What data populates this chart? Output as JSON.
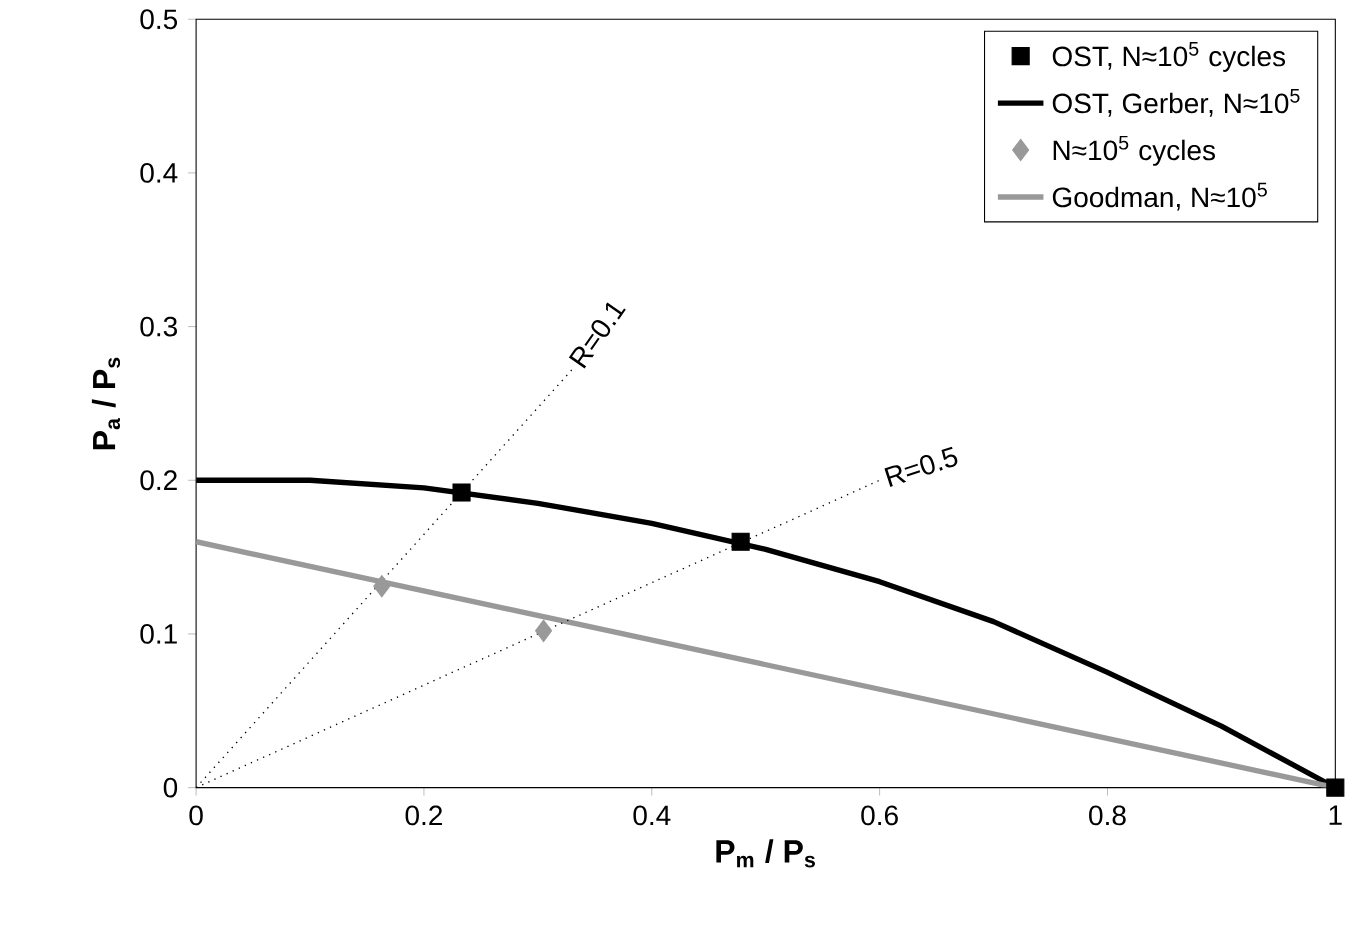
{
  "chart_data": {
    "type": "scatter",
    "xlabel": "**P$_{m}$ / P$_{s}$**",
    "ylabel": "**P$_{a}$ / P$_{s}$**",
    "xlim": [
      0,
      1
    ],
    "ylim": [
      0,
      0.5
    ],
    "xticks": [
      0,
      0.2,
      0.4,
      0.6,
      0.8,
      1
    ],
    "yticks": [
      0,
      0.1,
      0.2,
      0.3,
      0.4,
      0.5
    ],
    "grid": false,
    "legend": "top right",
    "series": [
      {
        "name": "OST, N≈10$^{5}$ cycles",
        "marker": "square",
        "color": "#000000",
        "x": [
          0.233,
          0.478,
          1
        ],
        "values": [
          0.192,
          0.16,
          0
        ]
      },
      {
        "name": "OST, Gerber, N≈10$^{5}$",
        "type": "line",
        "marker": "none",
        "line_style": "solid",
        "color": "#000000",
        "x": [
          0,
          0.1,
          0.2,
          0.3,
          0.4,
          0.5,
          0.6,
          0.7,
          0.8,
          0.9,
          0.95,
          1
        ],
        "values": [
          0.2,
          0.2,
          0.195,
          0.185,
          0.172,
          0.155,
          0.134,
          0.108,
          0.075,
          0.04,
          0.02,
          0
        ]
      },
      {
        "name": "N≈10$^{5}$ cycles",
        "marker": "diamond",
        "color": "#999999",
        "x": [
          0.163,
          0.305
        ],
        "values": [
          0.131,
          0.102
        ]
      },
      {
        "name": "Goodman, N≈10$^{5}$",
        "type": "line",
        "marker": "none",
        "line_style": "solid",
        "color": "#999999",
        "x": [
          0,
          1
        ],
        "values": [
          0.16,
          0
        ]
      },
      {
        "type": "line",
        "marker": "none",
        "line_style": "dotted",
        "color": "#000000",
        "x": [
          0,
          0.33
        ],
        "values": [
          0,
          0.272
        ]
      },
      {
        "type": "line",
        "marker": "none",
        "line_style": "dotted",
        "color": "#000000",
        "x": [
          0,
          0.6
        ],
        "values": [
          0,
          0.2
        ]
      }
    ],
    "annotations": [
      {
        "text": "R=0.1",
        "x": 0.33,
        "y": 0.272
      },
      {
        "text": "R=0.5",
        "x": 0.6,
        "y": 0.2
      }
    ]
  }
}
